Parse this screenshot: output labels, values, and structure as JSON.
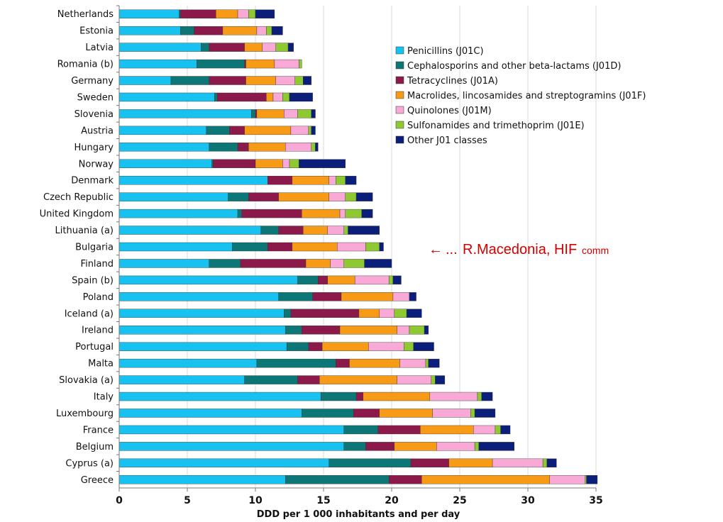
{
  "chart_data": {
    "type": "bar",
    "orientation": "horizontal",
    "stacked": true,
    "xlabel": "DDD per 1 000 inhabitants and per day",
    "xlim": [
      0,
      35
    ],
    "xticks": [
      0,
      5,
      10,
      15,
      20,
      25,
      30,
      35
    ],
    "grid": true,
    "legend_position": "right",
    "categories": [
      "Netherlands",
      "Estonia",
      "Latvia",
      "Romania (b)",
      "Germany",
      "Sweden",
      "Slovenia",
      "Austria",
      "Hungary",
      "Norway",
      "Denmark",
      "Czech Republic",
      "United Kingdom",
      "Lithuania (a)",
      "Bulgaria",
      "Finland",
      "Spain (b)",
      "Poland",
      "Iceland (a)",
      "Ireland",
      "Portugal",
      "Malta",
      "Slovakia (a)",
      "Italy",
      "Luxembourg",
      "France",
      "Belgium",
      "Cyprus (a)",
      "Greece"
    ],
    "series": [
      {
        "name": "Penicillins (J01C)",
        "color": "#17c2f0",
        "values": [
          4.4,
          4.5,
          6.0,
          5.7,
          3.8,
          7.0,
          9.7,
          6.4,
          6.6,
          6.8,
          10.9,
          8.0,
          8.7,
          10.4,
          8.3,
          6.6,
          13.1,
          11.7,
          12.1,
          12.2,
          12.3,
          10.1,
          9.2,
          14.8,
          13.4,
          16.5,
          16.5,
          15.4,
          12.2
        ]
      },
      {
        "name": "Cephalosporins and other beta-lactams (J01D)",
        "color": "#0d7777",
        "values": [
          0.1,
          1.0,
          0.6,
          3.5,
          2.8,
          0.2,
          0.3,
          1.7,
          2.1,
          0.1,
          0.0,
          1.5,
          0.3,
          1.3,
          2.6,
          2.3,
          1.5,
          2.5,
          0.5,
          1.2,
          1.6,
          5.8,
          3.9,
          2.6,
          3.8,
          2.5,
          1.6,
          6.0,
          7.6
        ]
      },
      {
        "name": "Tetracyclines (J01A)",
        "color": "#8b1a4a",
        "values": [
          2.6,
          2.1,
          2.6,
          0.1,
          2.7,
          3.6,
          0.1,
          1.1,
          0.8,
          3.1,
          1.8,
          2.2,
          4.4,
          1.8,
          1.8,
          4.8,
          0.7,
          2.1,
          5.0,
          2.8,
          1.0,
          1.0,
          1.6,
          0.5,
          1.9,
          3.1,
          2.1,
          2.8,
          2.4
        ]
      },
      {
        "name": "Macrolides, lincosamides and streptogramins (J01F)",
        "color": "#f79a16",
        "values": [
          1.6,
          2.5,
          1.3,
          2.1,
          2.2,
          0.5,
          2.0,
          3.4,
          2.7,
          2.0,
          2.7,
          3.7,
          2.8,
          1.8,
          3.3,
          1.8,
          2.0,
          3.8,
          1.5,
          4.2,
          3.4,
          3.7,
          5.7,
          4.9,
          3.9,
          3.9,
          3.1,
          3.2,
          9.4
        ]
      },
      {
        "name": "Quinolones (J01M)",
        "color": "#f8a9d5",
        "values": [
          0.8,
          0.7,
          1.0,
          1.8,
          1.4,
          0.7,
          1.0,
          1.3,
          1.9,
          0.5,
          0.5,
          1.2,
          0.4,
          1.2,
          2.1,
          1.0,
          2.5,
          1.2,
          1.1,
          0.9,
          2.6,
          1.9,
          2.5,
          3.5,
          2.8,
          1.6,
          2.8,
          3.7,
          2.6
        ]
      },
      {
        "name": "Sulfonamides and trimethoprim (J01E)",
        "color": "#8ec932",
        "values": [
          0.5,
          0.4,
          0.9,
          0.2,
          0.6,
          0.5,
          1.0,
          0.2,
          0.3,
          0.7,
          0.7,
          0.8,
          1.2,
          0.3,
          1.0,
          1.5,
          0.3,
          0.0,
          0.9,
          1.1,
          0.7,
          0.2,
          0.3,
          0.3,
          0.3,
          0.4,
          0.3,
          0.3,
          0.1
        ]
      },
      {
        "name": "Other J01 classes",
        "color": "#0b1f7a",
        "values": [
          1.4,
          0.8,
          0.4,
          0.0,
          0.6,
          1.7,
          0.3,
          0.3,
          0.2,
          3.4,
          0.8,
          1.2,
          0.8,
          2.3,
          0.3,
          2.0,
          0.6,
          0.5,
          1.1,
          0.3,
          1.5,
          0.8,
          0.7,
          0.8,
          1.5,
          0.7,
          2.6,
          0.7,
          0.8
        ]
      }
    ]
  },
  "annotation": {
    "arrow": "←",
    "ellipsis": "...",
    "text": "R.Macedonia, HIF",
    "small_text": "comm"
  }
}
